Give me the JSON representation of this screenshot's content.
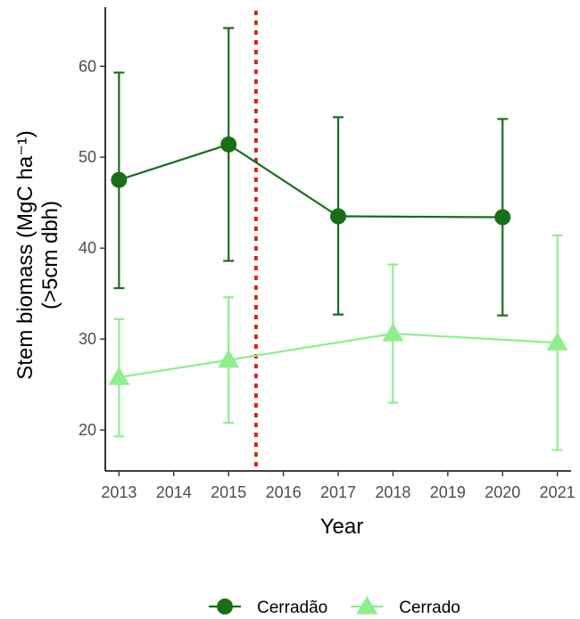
{
  "chart_data": {
    "type": "line",
    "xlabel": "Year",
    "ylabel_line1": "Stem biomass (MgC ha⁻¹)",
    "ylabel_line2": "(>5cm dbh)",
    "x_ticks": [
      2013,
      2014,
      2015,
      2016,
      2017,
      2018,
      2019,
      2020,
      2021
    ],
    "y_ticks": [
      20,
      30,
      40,
      50,
      60
    ],
    "xlim": [
      2012.75,
      2021.25
    ],
    "ylim": [
      15.5,
      66.5
    ],
    "vline": {
      "x": 2015.5,
      "color": "#d7261e",
      "style": "dotted"
    },
    "grid": false,
    "legend_position": "bottom",
    "series": [
      {
        "name": "Cerradão",
        "color": "#1a6e1a",
        "marker": "circle",
        "points": [
          {
            "x": 2013,
            "y": 47.5,
            "ymin": 35.6,
            "ymax": 59.3
          },
          {
            "x": 2015,
            "y": 51.4,
            "ymin": 38.6,
            "ymax": 64.2
          },
          {
            "x": 2017,
            "y": 43.5,
            "ymin": 32.7,
            "ymax": 54.4
          },
          {
            "x": 2020,
            "y": 43.4,
            "ymin": 32.6,
            "ymax": 54.2
          }
        ]
      },
      {
        "name": "Cerrado",
        "color": "#90ee90",
        "marker": "triangle",
        "points": [
          {
            "x": 2013,
            "y": 25.8,
            "ymin": 19.3,
            "ymax": 32.2
          },
          {
            "x": 2015,
            "y": 27.7,
            "ymin": 20.8,
            "ymax": 34.6
          },
          {
            "x": 2018,
            "y": 30.6,
            "ymin": 23.0,
            "ymax": 38.2
          },
          {
            "x": 2021,
            "y": 29.6,
            "ymin": 17.8,
            "ymax": 41.4
          }
        ]
      }
    ]
  }
}
